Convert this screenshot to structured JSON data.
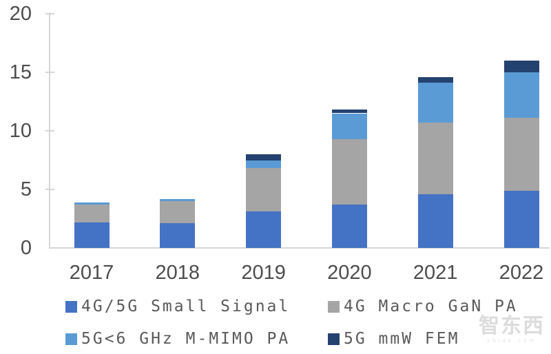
{
  "watermark": {
    "brand": "智东西",
    "domain": "zhidx.com"
  },
  "colors": {
    "axis": "#d6d6d6",
    "axis_text": "#4c4c4c",
    "legend_text": "#595959",
    "background": "#ffffff"
  },
  "chart_data": {
    "type": "bar",
    "stacked": true,
    "title": "",
    "xlabel": "",
    "ylabel": "",
    "categories": [
      "2017",
      "2018",
      "2019",
      "2020",
      "2021",
      "2022"
    ],
    "series": [
      {
        "name": "4G/5G Small Signal",
        "color": "#4472C4",
        "values": [
          2.2,
          2.1,
          3.1,
          3.7,
          4.6,
          4.9
        ]
      },
      {
        "name": "4G Macro GaN PA",
        "color": "#A5A5A5",
        "values": [
          1.5,
          1.9,
          3.7,
          5.6,
          6.1,
          6.2
        ]
      },
      {
        "name": "5G<6 GHz M-MIMO PA",
        "color": "#5B9BD5",
        "values": [
          0.2,
          0.2,
          0.7,
          2.2,
          3.4,
          3.9
        ]
      },
      {
        "name": "5G mmW FEM",
        "color": "#24426F",
        "values": [
          0.0,
          0.0,
          0.5,
          0.3,
          0.5,
          1.0
        ]
      }
    ],
    "totals": [
      3.9,
      4.2,
      8.0,
      11.8,
      14.6,
      16.0
    ],
    "ylim": [
      0,
      20
    ],
    "yticks": [
      0,
      5,
      10,
      15,
      20
    ],
    "grid": false,
    "legend_position": "bottom"
  }
}
